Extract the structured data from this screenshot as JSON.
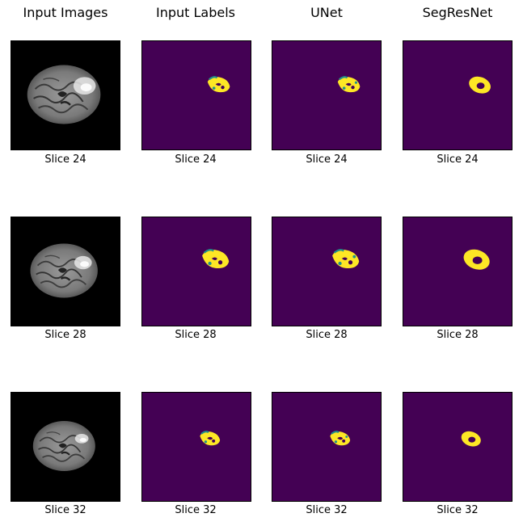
{
  "columns": [
    {
      "title": "Input Images",
      "kind": "image"
    },
    {
      "title": "Input Labels",
      "kind": "label"
    },
    {
      "title": "UNet",
      "kind": "unet"
    },
    {
      "title": "SegResNet",
      "kind": "segres"
    }
  ],
  "rows": [
    {
      "slice_label": "Slice 24"
    },
    {
      "slice_label": "Slice 28"
    },
    {
      "slice_label": "Slice 32"
    }
  ],
  "colors": {
    "background": "#440154",
    "tumor_core": "#fde725",
    "tumor_edge": "#21918c",
    "tumor_hole": "#440154",
    "mri_background": "#000000"
  }
}
